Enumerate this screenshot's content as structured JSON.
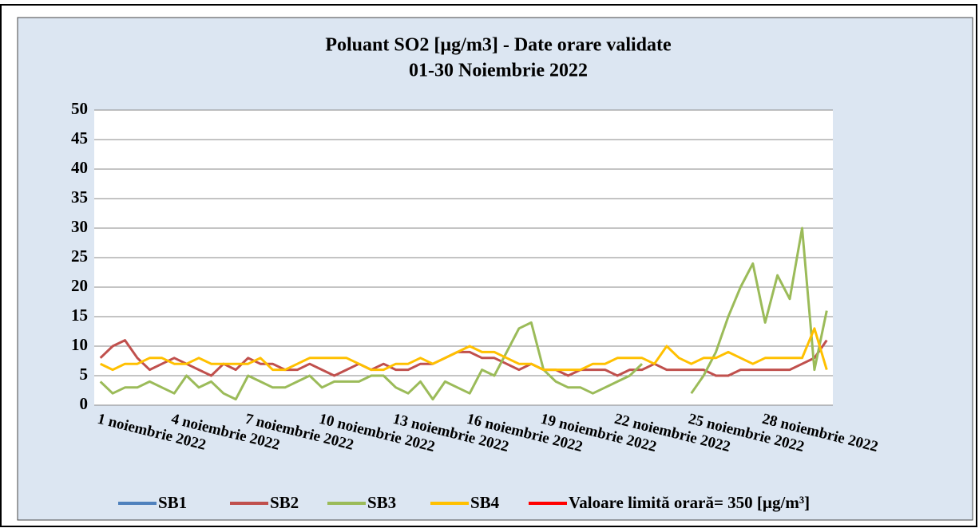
{
  "chart_data": {
    "type": "line",
    "title": "Poluant SO2 [µg/m3] - Date orare validate",
    "subtitle": "01-30 Noiembrie 2022",
    "categories": [
      "1 noiembrie 2022",
      null,
      null,
      null,
      null,
      null,
      "4 noiembrie 2022",
      null,
      null,
      null,
      null,
      null,
      "7 noiembrie 2022",
      null,
      null,
      null,
      null,
      null,
      "10 noiembrie 2022",
      null,
      null,
      null,
      null,
      null,
      "13 noiembrie 2022",
      null,
      null,
      null,
      null,
      null,
      "16 noiembrie 2022",
      null,
      null,
      null,
      null,
      null,
      "19 noiembrie 2022",
      null,
      null,
      null,
      null,
      null,
      "22 noiembrie 2022",
      null,
      null,
      null,
      null,
      null,
      "25 noiembrie 2022",
      null,
      null,
      null,
      null,
      null,
      "28 noiembrie 2022",
      null,
      null,
      null,
      null,
      null
    ],
    "series": [
      {
        "name": "SB1",
        "color": "#4f81bd",
        "values": [
          null,
          null,
          null,
          null,
          null,
          null,
          null,
          null,
          null,
          null,
          null,
          null,
          null,
          null,
          null,
          null,
          null,
          null,
          null,
          null,
          null,
          null,
          null,
          null,
          null,
          null,
          null,
          null,
          null,
          null,
          null,
          null,
          null,
          null,
          null,
          null,
          null,
          null,
          null,
          null,
          null,
          null,
          null,
          null,
          null,
          null,
          null,
          null,
          null,
          null,
          null,
          null,
          null,
          null,
          null,
          null,
          null,
          null,
          null,
          null
        ]
      },
      {
        "name": "SB2",
        "color": "#c0504d",
        "values": [
          8,
          10,
          11,
          8,
          6,
          7,
          8,
          7,
          6,
          5,
          7,
          6,
          8,
          7,
          7,
          6,
          6,
          7,
          6,
          5,
          6,
          7,
          6,
          7,
          6,
          6,
          7,
          7,
          8,
          9,
          9,
          8,
          8,
          7,
          6,
          7,
          6,
          6,
          5,
          6,
          6,
          6,
          5,
          6,
          6,
          7,
          6,
          6,
          6,
          6,
          5,
          5,
          6,
          6,
          6,
          6,
          6,
          7,
          8,
          11
        ]
      },
      {
        "name": "SB3",
        "color": "#9bbb59",
        "values": [
          4,
          2,
          3,
          3,
          4,
          3,
          2,
          5,
          3,
          4,
          2,
          1,
          5,
          4,
          3,
          3,
          4,
          5,
          3,
          4,
          4,
          4,
          5,
          5,
          3,
          2,
          4,
          1,
          4,
          3,
          2,
          6,
          5,
          9,
          13,
          14,
          6,
          4,
          3,
          3,
          2,
          3,
          4,
          5,
          7,
          null,
          null,
          null,
          2,
          5,
          9,
          15,
          20,
          24,
          14,
          22,
          18,
          30,
          6,
          16
        ]
      },
      {
        "name": "SB4",
        "color": "#ffc000",
        "values": [
          7,
          6,
          7,
          7,
          8,
          8,
          7,
          7,
          8,
          7,
          7,
          7,
          7,
          8,
          6,
          6,
          7,
          8,
          8,
          8,
          8,
          7,
          6,
          6,
          7,
          7,
          8,
          7,
          8,
          9,
          10,
          9,
          9,
          8,
          7,
          7,
          6,
          6,
          6,
          6,
          7,
          7,
          8,
          8,
          8,
          7,
          10,
          8,
          7,
          8,
          8,
          9,
          8,
          7,
          8,
          8,
          8,
          8,
          13,
          6
        ]
      }
    ],
    "limit": {
      "name": "Valoare limită orară= 350 [µg/m³]",
      "color": "#ff0000",
      "value": 350
    },
    "ylim": [
      0,
      50
    ],
    "yticks": [
      0,
      5,
      10,
      15,
      20,
      25,
      30,
      35,
      40,
      45,
      50
    ],
    "grid": true
  }
}
